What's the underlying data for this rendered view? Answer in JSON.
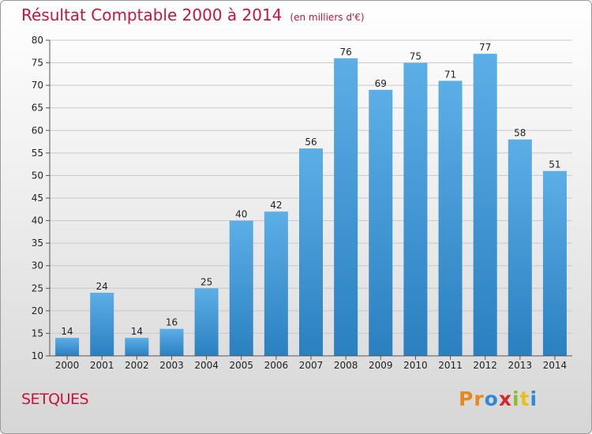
{
  "header": {
    "title": "Résultat Comptable 2000 à 2014",
    "subtitle": "(en milliers d'€)"
  },
  "footer": {
    "commune": "SETQUES",
    "logo_letters": [
      "P",
      "r",
      "o",
      "x",
      "i",
      "t",
      "i"
    ],
    "logo_colors": [
      "#e8891a",
      "#e8891a",
      "#2c8ad8",
      "#d6272a",
      "#8cbe2a",
      "#e8c01a",
      "#2c8ad8"
    ]
  },
  "colors": {
    "bar_light": "#5caee6",
    "bar_dark": "#2a80c0",
    "grid": "#c8c8c8",
    "title": "#c8143c"
  },
  "chart_data": {
    "type": "bar",
    "title": "Résultat Comptable 2000 à 2014",
    "subtitle": "(en milliers d'€)",
    "xlabel": "",
    "ylabel": "",
    "categories": [
      "2000",
      "2001",
      "2002",
      "2003",
      "2004",
      "2005",
      "2006",
      "2007",
      "2008",
      "2009",
      "2010",
      "2011",
      "2012",
      "2013",
      "2014"
    ],
    "values": [
      14,
      24,
      14,
      16,
      25,
      40,
      42,
      56,
      76,
      69,
      75,
      71,
      77,
      58,
      51
    ],
    "ylim": [
      10,
      80
    ],
    "yticks": [
      10,
      15,
      20,
      25,
      30,
      35,
      40,
      45,
      50,
      55,
      60,
      65,
      70,
      75,
      80
    ],
    "grid": true,
    "data_labels": true
  }
}
